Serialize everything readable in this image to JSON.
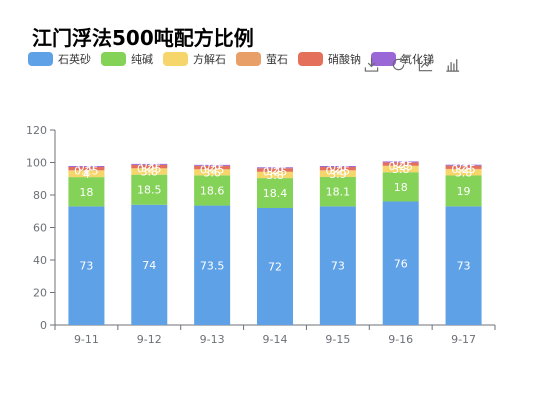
{
  "title": "江门浮法500吨配方比例",
  "colors": [
    "#5fa1e6",
    "#84d257",
    "#f6d56a",
    "#e99f68",
    "#e4705b",
    "#9a67d6"
  ],
  "toolbox": [
    {
      "name": "save-as-image-icon"
    },
    {
      "name": "restore-icon"
    },
    {
      "name": "line-chart-icon"
    },
    {
      "name": "bar-chart-icon"
    }
  ],
  "chart_data": {
    "type": "bar",
    "stacked": true,
    "title": "江门浮法500吨配方比例",
    "categories": [
      "9-11",
      "9-12",
      "9-13",
      "9-14",
      "9-15",
      "9-16",
      "9-17"
    ],
    "ylim": [
      0,
      120
    ],
    "yticks": [
      0,
      20,
      40,
      60,
      80,
      100,
      120
    ],
    "grid": false,
    "legend_position": "top-left",
    "series": [
      {
        "name": "石英砂",
        "values": [
          73,
          74,
          73.5,
          72,
          73,
          76,
          73
        ]
      },
      {
        "name": "纯碱",
        "values": [
          18,
          18.5,
          18.6,
          18.4,
          18.1,
          18,
          19
        ]
      },
      {
        "name": "方解石",
        "values": [
          4,
          3.8,
          3.6,
          3.8,
          3.9,
          3.8,
          3.8
        ]
      },
      {
        "name": "萤石",
        "values": [
          0.25,
          0.25,
          0.25,
          0.25,
          0.25,
          0.25,
          0.25
        ]
      },
      {
        "name": "硝酸钠",
        "values": [
          2,
          2,
          2,
          2,
          2,
          2,
          2
        ]
      },
      {
        "name": "氧化锑",
        "values": [
          0.6,
          0.6,
          0.6,
          0.6,
          0.6,
          0.6,
          0.6
        ]
      }
    ]
  }
}
